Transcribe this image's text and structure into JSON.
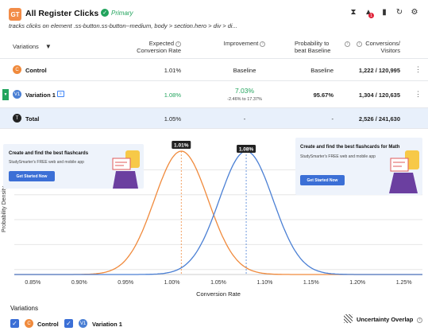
{
  "goal": {
    "badge": "GT",
    "title": "All Register Clicks",
    "primary_label": "Primary",
    "description": "tracks clicks on element .ss-button.ss-button--medium, body > section.hero > div > di...",
    "alert_count": "1",
    "icons": [
      "hourglass-icon",
      "alert-icon",
      "bookmark-icon",
      "refresh-icon",
      "settings-icon"
    ]
  },
  "table": {
    "headers": {
      "variations": "Variations",
      "expected_line1": "Expected",
      "expected_line2": "Conversion Rate",
      "improvement": "Improvement",
      "probability_line1": "Probability to",
      "probability_line2": "beat Baseline",
      "conversions_line1": "Conversions/",
      "conversions_line2": "Visitors"
    },
    "rows": [
      {
        "badge": "C",
        "name": "Control",
        "expected": "1.01%",
        "improvement": "Baseline",
        "improvement_range": "",
        "probability": "Baseline",
        "conversions": "1,222 / 120,995",
        "color": "#f08a3c"
      },
      {
        "badge": "V1",
        "name": "Variation 1",
        "expected": "1.08%",
        "improvement": "7.03%",
        "improvement_range": "-2.46% to 17.37%",
        "probability": "95.67%",
        "conversions": "1,304 / 120,635",
        "color": "#4a7fd4"
      },
      {
        "badge": "T",
        "name": "Total",
        "expected": "1.05%",
        "improvement": "-",
        "improvement_range": "",
        "probability": "-",
        "conversions": "2,526 / 241,630",
        "color": "#222222"
      }
    ]
  },
  "ads": [
    {
      "title": "Create and find the best flashcards",
      "subtitle": "StudySmarter's FREE web and mobile app",
      "button": "Get Started Now"
    },
    {
      "title": "Create and find the best flashcards for Math",
      "subtitle": "StudySmarter's FREE web and mobile app",
      "button": "Get Started Now"
    }
  ],
  "chart_data": {
    "type": "line",
    "title": "",
    "xlabel": "Conversion Rate",
    "ylabel": "Probability Density",
    "xlim": [
      0.83,
      1.27
    ],
    "x_ticks": [
      "0.85%",
      "0.90%",
      "0.95%",
      "1.00%",
      "1.05%",
      "1.10%",
      "1.15%",
      "1.20%",
      "1.25%"
    ],
    "x_tick_values": [
      0.85,
      0.9,
      0.95,
      1.0,
      1.05,
      1.1,
      1.15,
      1.2,
      1.25
    ],
    "grid": true,
    "series": [
      {
        "name": "Control",
        "mean": 1.01,
        "sd": 0.029,
        "marker_label": "1.01%",
        "color": "#f08a3c"
      },
      {
        "name": "Variation 1",
        "mean": 1.08,
        "sd": 0.029,
        "marker_label": "1.08%",
        "color": "#4a7fd4"
      }
    ]
  },
  "legend": {
    "title": "Variations",
    "items": [
      {
        "badge": "C",
        "name": "Control",
        "color": "#f08a3c"
      },
      {
        "badge": "V1",
        "name": "Variation 1",
        "color": "#4a7fd4"
      }
    ],
    "uncertainty_label": "Uncertainty Overlap"
  }
}
